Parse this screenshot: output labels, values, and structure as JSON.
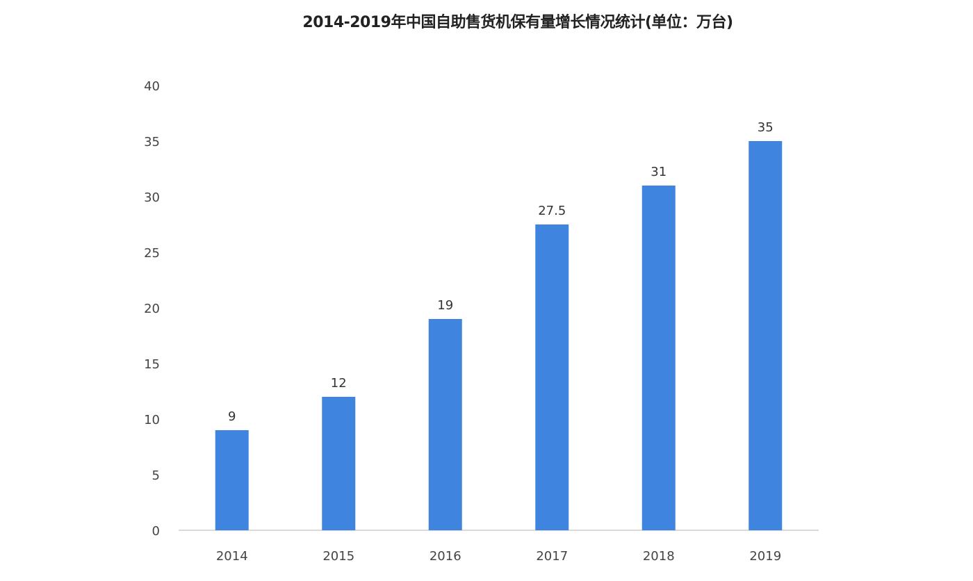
{
  "chart_data": {
    "type": "bar",
    "title": "2014-2019年中国自助售货机保有量增长情况统计(单位：万台)",
    "categories": [
      "2014",
      "2015",
      "2016",
      "2017",
      "2018",
      "2019"
    ],
    "values": [
      9,
      12,
      19,
      27.5,
      31,
      35
    ],
    "data_labels": [
      "9",
      "12",
      "19",
      "27.5",
      "31",
      "35"
    ],
    "xlabel": "",
    "ylabel": "",
    "ylim": [
      0,
      40
    ],
    "yticks": [
      0,
      5,
      10,
      15,
      20,
      25,
      30,
      35,
      40
    ],
    "grid": false,
    "legend": "none",
    "bar_color": "#3f85e0"
  }
}
